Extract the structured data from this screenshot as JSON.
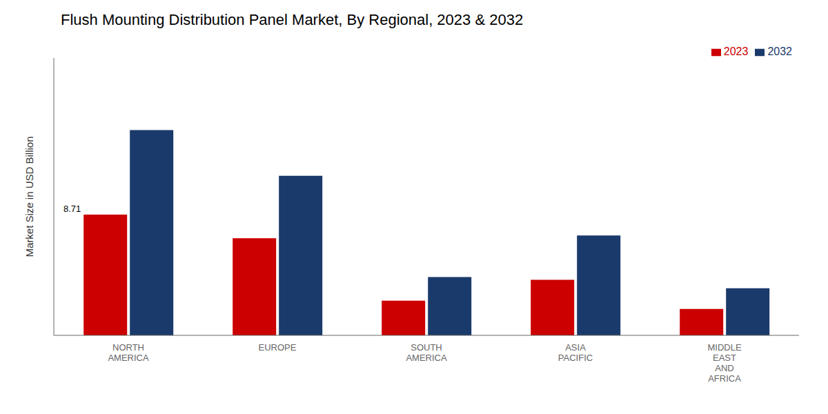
{
  "chart_data": {
    "type": "bar",
    "title": "Flush Mounting Distribution Panel Market, By Regional, 2023 & 2032",
    "ylabel": "Market Size in USD Billion",
    "categories": [
      "NORTH\nAMERICA",
      "EUROPE",
      "SOUTH\nAMERICA",
      "ASIA\nPACIFIC",
      "MIDDLE\nEAST\nAND\nAFRICA"
    ],
    "series": [
      {
        "name": "2023",
        "color": "#cc0000",
        "values": [
          8.71,
          7.0,
          2.5,
          4.0,
          1.9
        ]
      },
      {
        "name": "2032",
        "color": "#1a3a6b",
        "values": [
          14.8,
          11.5,
          4.2,
          7.2,
          3.4
        ]
      }
    ],
    "ylim": [
      0,
      20
    ],
    "yticks": [],
    "tick_labels": "x",
    "grid": false,
    "legend": "upper right",
    "annotations": [
      {
        "text": "8.71",
        "category": "NORTH\nAMERICA",
        "series": "2023"
      }
    ]
  }
}
